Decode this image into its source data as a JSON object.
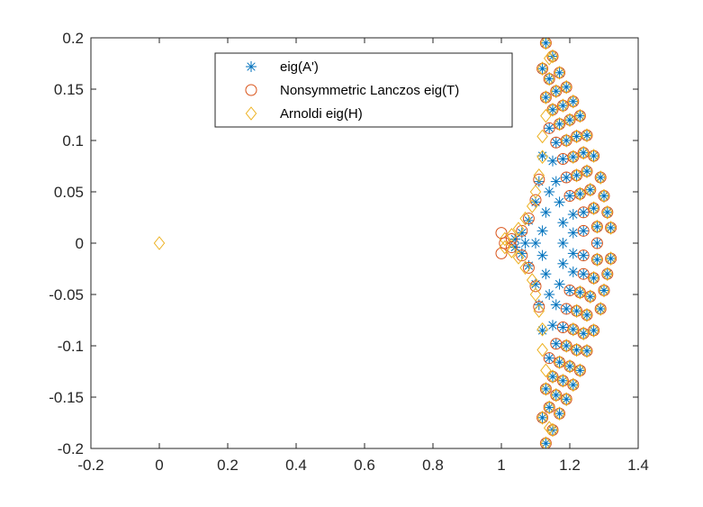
{
  "chart_data": {
    "type": "scatter",
    "xlim": [
      -0.2,
      1.4
    ],
    "ylim": [
      -0.2,
      0.2
    ],
    "x_ticks": [
      -0.2,
      0,
      0.2,
      0.4,
      0.6,
      0.8,
      1,
      1.2,
      1.4
    ],
    "x_tick_labels": [
      "-0.2",
      "0",
      "0.2",
      "0.4",
      "0.6",
      "0.8",
      "1",
      "1.2",
      "1.4"
    ],
    "y_ticks": [
      -0.2,
      -0.15,
      -0.1,
      -0.05,
      0,
      0.05,
      0.1,
      0.15,
      0.2
    ],
    "y_tick_labels": [
      "-0.2",
      "-0.15",
      "-0.1",
      "-0.05",
      "0",
      "0.05",
      "0.1",
      "0.15",
      "0.2"
    ],
    "grid": false,
    "legend_position": "top-center",
    "series": [
      {
        "name": "eig(A')",
        "marker": "asterisk",
        "color": "#0072BD",
        "points": [
          [
            1.13,
            0.195
          ],
          [
            1.15,
            0.182
          ],
          [
            1.17,
            0.166
          ],
          [
            1.19,
            0.152
          ],
          [
            1.21,
            0.138
          ],
          [
            1.23,
            0.124
          ],
          [
            1.25,
            0.105
          ],
          [
            1.27,
            0.085
          ],
          [
            1.29,
            0.064
          ],
          [
            1.3,
            0.046
          ],
          [
            1.31,
            0.03
          ],
          [
            1.32,
            0.015
          ],
          [
            1.13,
            -0.195
          ],
          [
            1.15,
            -0.182
          ],
          [
            1.17,
            -0.166
          ],
          [
            1.19,
            -0.152
          ],
          [
            1.21,
            -0.138
          ],
          [
            1.23,
            -0.124
          ],
          [
            1.25,
            -0.105
          ],
          [
            1.27,
            -0.085
          ],
          [
            1.29,
            -0.064
          ],
          [
            1.3,
            -0.046
          ],
          [
            1.31,
            -0.03
          ],
          [
            1.32,
            -0.015
          ],
          [
            1.12,
            0.17
          ],
          [
            1.14,
            0.16
          ],
          [
            1.16,
            0.148
          ],
          [
            1.18,
            0.134
          ],
          [
            1.2,
            0.12
          ],
          [
            1.22,
            0.104
          ],
          [
            1.24,
            0.088
          ],
          [
            1.25,
            0.07
          ],
          [
            1.26,
            0.052
          ],
          [
            1.27,
            0.034
          ],
          [
            1.28,
            0.016
          ],
          [
            1.28,
            0.0
          ],
          [
            1.12,
            -0.17
          ],
          [
            1.14,
            -0.16
          ],
          [
            1.16,
            -0.148
          ],
          [
            1.18,
            -0.134
          ],
          [
            1.2,
            -0.12
          ],
          [
            1.22,
            -0.104
          ],
          [
            1.24,
            -0.088
          ],
          [
            1.25,
            -0.07
          ],
          [
            1.26,
            -0.052
          ],
          [
            1.27,
            -0.034
          ],
          [
            1.28,
            -0.016
          ],
          [
            1.13,
            0.142
          ],
          [
            1.15,
            0.13
          ],
          [
            1.17,
            0.116
          ],
          [
            1.19,
            0.1
          ],
          [
            1.21,
            0.084
          ],
          [
            1.22,
            0.066
          ],
          [
            1.23,
            0.048
          ],
          [
            1.24,
            0.03
          ],
          [
            1.24,
            0.012
          ],
          [
            1.13,
            -0.142
          ],
          [
            1.15,
            -0.13
          ],
          [
            1.17,
            -0.116
          ],
          [
            1.19,
            -0.1
          ],
          [
            1.21,
            -0.084
          ],
          [
            1.22,
            -0.066
          ],
          [
            1.23,
            -0.048
          ],
          [
            1.24,
            -0.03
          ],
          [
            1.24,
            -0.012
          ],
          [
            1.14,
            0.112
          ],
          [
            1.16,
            0.098
          ],
          [
            1.18,
            0.082
          ],
          [
            1.19,
            0.064
          ],
          [
            1.2,
            0.046
          ],
          [
            1.21,
            0.028
          ],
          [
            1.21,
            0.01
          ],
          [
            1.14,
            -0.112
          ],
          [
            1.16,
            -0.098
          ],
          [
            1.18,
            -0.082
          ],
          [
            1.19,
            -0.064
          ],
          [
            1.2,
            -0.046
          ],
          [
            1.21,
            -0.028
          ],
          [
            1.21,
            -0.01
          ],
          [
            1.15,
            0.08
          ],
          [
            1.16,
            0.06
          ],
          [
            1.17,
            0.04
          ],
          [
            1.18,
            0.02
          ],
          [
            1.18,
            0.0
          ],
          [
            1.15,
            -0.08
          ],
          [
            1.16,
            -0.06
          ],
          [
            1.17,
            -0.04
          ],
          [
            1.18,
            -0.02
          ],
          [
            1.12,
            0.085
          ],
          [
            1.11,
            0.06
          ],
          [
            1.1,
            0.04
          ],
          [
            1.08,
            0.022
          ],
          [
            1.06,
            0.01
          ],
          [
            1.04,
            0.004
          ],
          [
            1.12,
            -0.085
          ],
          [
            1.11,
            -0.06
          ],
          [
            1.1,
            -0.04
          ],
          [
            1.08,
            -0.022
          ],
          [
            1.06,
            -0.01
          ],
          [
            1.04,
            -0.004
          ],
          [
            1.14,
            0.05
          ],
          [
            1.13,
            0.03
          ],
          [
            1.12,
            0.012
          ],
          [
            1.14,
            -0.05
          ],
          [
            1.13,
            -0.03
          ],
          [
            1.12,
            -0.012
          ],
          [
            1.1,
            0.0
          ],
          [
            1.07,
            0.0
          ]
        ]
      },
      {
        "name": "Nonsymmetric Lanczos eig(T)",
        "marker": "circle",
        "color": "#D95319",
        "points": [
          [
            1.13,
            0.195
          ],
          [
            1.15,
            0.182
          ],
          [
            1.17,
            0.166
          ],
          [
            1.19,
            0.152
          ],
          [
            1.21,
            0.138
          ],
          [
            1.23,
            0.124
          ],
          [
            1.25,
            0.105
          ],
          [
            1.27,
            0.085
          ],
          [
            1.29,
            0.064
          ],
          [
            1.3,
            0.046
          ],
          [
            1.31,
            0.03
          ],
          [
            1.32,
            0.015
          ],
          [
            1.13,
            -0.195
          ],
          [
            1.15,
            -0.182
          ],
          [
            1.17,
            -0.166
          ],
          [
            1.19,
            -0.152
          ],
          [
            1.21,
            -0.138
          ],
          [
            1.23,
            -0.124
          ],
          [
            1.25,
            -0.105
          ],
          [
            1.27,
            -0.085
          ],
          [
            1.29,
            -0.064
          ],
          [
            1.3,
            -0.046
          ],
          [
            1.31,
            -0.03
          ],
          [
            1.32,
            -0.015
          ],
          [
            1.12,
            0.17
          ],
          [
            1.14,
            0.16
          ],
          [
            1.16,
            0.148
          ],
          [
            1.18,
            0.134
          ],
          [
            1.2,
            0.12
          ],
          [
            1.22,
            0.104
          ],
          [
            1.24,
            0.088
          ],
          [
            1.25,
            0.07
          ],
          [
            1.26,
            0.052
          ],
          [
            1.27,
            0.034
          ],
          [
            1.28,
            0.016
          ],
          [
            1.28,
            0.0
          ],
          [
            1.12,
            -0.17
          ],
          [
            1.14,
            -0.16
          ],
          [
            1.16,
            -0.148
          ],
          [
            1.18,
            -0.134
          ],
          [
            1.2,
            -0.12
          ],
          [
            1.22,
            -0.104
          ],
          [
            1.24,
            -0.088
          ],
          [
            1.25,
            -0.07
          ],
          [
            1.26,
            -0.052
          ],
          [
            1.27,
            -0.034
          ],
          [
            1.28,
            -0.016
          ],
          [
            1.13,
            0.142
          ],
          [
            1.15,
            0.13
          ],
          [
            1.17,
            0.116
          ],
          [
            1.19,
            0.1
          ],
          [
            1.21,
            0.084
          ],
          [
            1.22,
            0.066
          ],
          [
            1.23,
            0.048
          ],
          [
            1.24,
            0.03
          ],
          [
            1.24,
            0.012
          ],
          [
            1.13,
            -0.142
          ],
          [
            1.15,
            -0.13
          ],
          [
            1.17,
            -0.116
          ],
          [
            1.19,
            -0.1
          ],
          [
            1.21,
            -0.084
          ],
          [
            1.22,
            -0.066
          ],
          [
            1.23,
            -0.048
          ],
          [
            1.24,
            -0.03
          ],
          [
            1.24,
            -0.012
          ],
          [
            1.14,
            0.112
          ],
          [
            1.16,
            0.098
          ],
          [
            1.18,
            0.082
          ],
          [
            1.19,
            0.064
          ],
          [
            1.2,
            0.046
          ],
          [
            1.14,
            -0.112
          ],
          [
            1.16,
            -0.098
          ],
          [
            1.18,
            -0.082
          ],
          [
            1.19,
            -0.064
          ],
          [
            1.2,
            -0.046
          ],
          [
            1.0,
            0.01
          ],
          [
            1.0,
            -0.01
          ],
          [
            1.01,
            0.0
          ],
          [
            1.03,
            0.004
          ],
          [
            1.03,
            -0.004
          ],
          [
            1.06,
            0.012
          ],
          [
            1.08,
            0.024
          ],
          [
            1.1,
            0.042
          ],
          [
            1.11,
            0.062
          ],
          [
            1.06,
            -0.012
          ],
          [
            1.08,
            -0.024
          ],
          [
            1.1,
            -0.042
          ],
          [
            1.11,
            -0.062
          ]
        ]
      },
      {
        "name": "Arnoldi eig(H)",
        "marker": "diamond",
        "color": "#EDB120",
        "points": [
          [
            0.0,
            0.0
          ],
          [
            1.13,
            0.195
          ],
          [
            1.15,
            0.182
          ],
          [
            1.17,
            0.166
          ],
          [
            1.19,
            0.152
          ],
          [
            1.21,
            0.138
          ],
          [
            1.23,
            0.124
          ],
          [
            1.25,
            0.105
          ],
          [
            1.27,
            0.085
          ],
          [
            1.29,
            0.064
          ],
          [
            1.3,
            0.046
          ],
          [
            1.31,
            0.03
          ],
          [
            1.32,
            0.015
          ],
          [
            1.13,
            -0.195
          ],
          [
            1.15,
            -0.182
          ],
          [
            1.17,
            -0.166
          ],
          [
            1.19,
            -0.152
          ],
          [
            1.21,
            -0.138
          ],
          [
            1.23,
            -0.124
          ],
          [
            1.25,
            -0.105
          ],
          [
            1.27,
            -0.085
          ],
          [
            1.29,
            -0.064
          ],
          [
            1.3,
            -0.046
          ],
          [
            1.31,
            -0.03
          ],
          [
            1.32,
            -0.015
          ],
          [
            1.12,
            0.17
          ],
          [
            1.14,
            0.16
          ],
          [
            1.16,
            0.148
          ],
          [
            1.18,
            0.134
          ],
          [
            1.2,
            0.12
          ],
          [
            1.22,
            0.104
          ],
          [
            1.24,
            0.088
          ],
          [
            1.25,
            0.07
          ],
          [
            1.26,
            0.052
          ],
          [
            1.27,
            0.034
          ],
          [
            1.28,
            0.016
          ],
          [
            1.12,
            -0.17
          ],
          [
            1.14,
            -0.16
          ],
          [
            1.16,
            -0.148
          ],
          [
            1.18,
            -0.134
          ],
          [
            1.2,
            -0.12
          ],
          [
            1.22,
            -0.104
          ],
          [
            1.24,
            -0.088
          ],
          [
            1.25,
            -0.07
          ],
          [
            1.26,
            -0.052
          ],
          [
            1.27,
            -0.034
          ],
          [
            1.28,
            -0.016
          ],
          [
            1.13,
            0.142
          ],
          [
            1.15,
            0.13
          ],
          [
            1.17,
            0.116
          ],
          [
            1.19,
            0.1
          ],
          [
            1.21,
            0.084
          ],
          [
            1.22,
            0.066
          ],
          [
            1.23,
            0.048
          ],
          [
            1.13,
            -0.142
          ],
          [
            1.15,
            -0.13
          ],
          [
            1.17,
            -0.116
          ],
          [
            1.19,
            -0.1
          ],
          [
            1.21,
            -0.084
          ],
          [
            1.22,
            -0.066
          ],
          [
            1.23,
            -0.048
          ],
          [
            1.01,
            0.004
          ],
          [
            1.01,
            -0.004
          ],
          [
            1.03,
            0.008
          ],
          [
            1.03,
            -0.008
          ],
          [
            1.05,
            0.014
          ],
          [
            1.05,
            -0.014
          ],
          [
            1.07,
            0.024
          ],
          [
            1.07,
            -0.024
          ],
          [
            1.09,
            0.036
          ],
          [
            1.09,
            -0.036
          ],
          [
            1.1,
            0.05
          ],
          [
            1.1,
            -0.05
          ],
          [
            1.11,
            0.066
          ],
          [
            1.11,
            -0.066
          ],
          [
            1.12,
            0.084
          ],
          [
            1.12,
            -0.084
          ],
          [
            1.12,
            0.104
          ],
          [
            1.12,
            -0.104
          ],
          [
            1.13,
            0.124
          ],
          [
            1.13,
            -0.124
          ],
          [
            1.14,
            0.18
          ],
          [
            1.14,
            -0.18
          ]
        ]
      }
    ]
  }
}
